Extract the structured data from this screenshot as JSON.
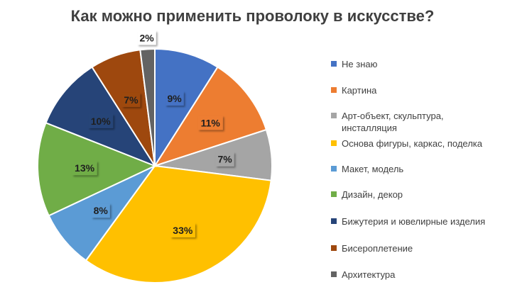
{
  "chart_data": {
    "type": "pie",
    "title": "Как можно применить проволоку в искусстве?",
    "legend_position": "right",
    "slices": [
      {
        "label": "Не знаю",
        "value": 9,
        "display": "9%",
        "color": "#4472C4"
      },
      {
        "label": "Картина",
        "value": 11,
        "display": "11%",
        "color": "#ED7D31"
      },
      {
        "label": "Арт-объект, скульптура, инсталляция",
        "value": 7,
        "display": "7%",
        "color": "#A5A5A5"
      },
      {
        "label": "Основа фигуры, каркас, поделка",
        "value": 33,
        "display": "33%",
        "color": "#FFC000"
      },
      {
        "label": "Макет, модель",
        "value": 8,
        "display": "8%",
        "color": "#5B9BD5"
      },
      {
        "label": "Дизайн, декор",
        "value": 13,
        "display": "13%",
        "color": "#70AD47"
      },
      {
        "label": "Бижутерия и ювелирные изделия",
        "value": 10,
        "display": "10%",
        "color": "#264478"
      },
      {
        "label": "Бисероплетение",
        "value": 7,
        "display": "7%",
        "color": "#9E480E"
      },
      {
        "label": "Архитектура",
        "value": 2,
        "display": "2%",
        "color": "#636363"
      }
    ]
  }
}
